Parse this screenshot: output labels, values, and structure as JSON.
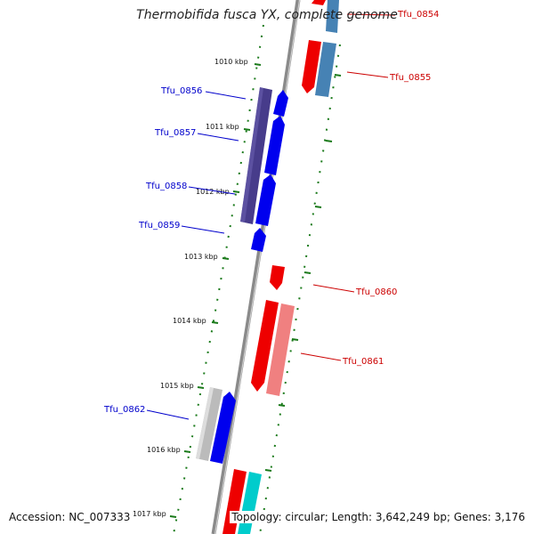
{
  "title": "Thermobifida fusca YX, complete genome",
  "footer": {
    "accession": "Accession: NC_007333",
    "summary": "Topology: circular; Length: 3,642,249 bp; Genes: 3,176"
  },
  "ticks": [
    "1010 kbp",
    "1011 kbp",
    "1012 kbp",
    "1013 kbp",
    "1014 kbp",
    "1015 kbp",
    "1016 kbp",
    "1017 kbp"
  ],
  "colors": {
    "backbone": "#888888",
    "tick": "#1a7a1a",
    "forward_label": "#0000cc",
    "reverse_label": "#cc0000",
    "gene_blue": "#0000ee",
    "gene_navy": "#473c8b",
    "gene_red": "#ee0000",
    "gene_pink": "#f08080",
    "gene_steel": "#4682b4",
    "gene_gray": "#bbbbbb",
    "gene_cyan": "#00cccc"
  },
  "gene_labels": {
    "forward": [
      "Tfu_0856",
      "Tfu_0857",
      "Tfu_0858",
      "Tfu_0859",
      "Tfu_0862"
    ],
    "reverse": [
      "Tfu_0854",
      "Tfu_0855",
      "Tfu_0860",
      "Tfu_0861"
    ]
  }
}
